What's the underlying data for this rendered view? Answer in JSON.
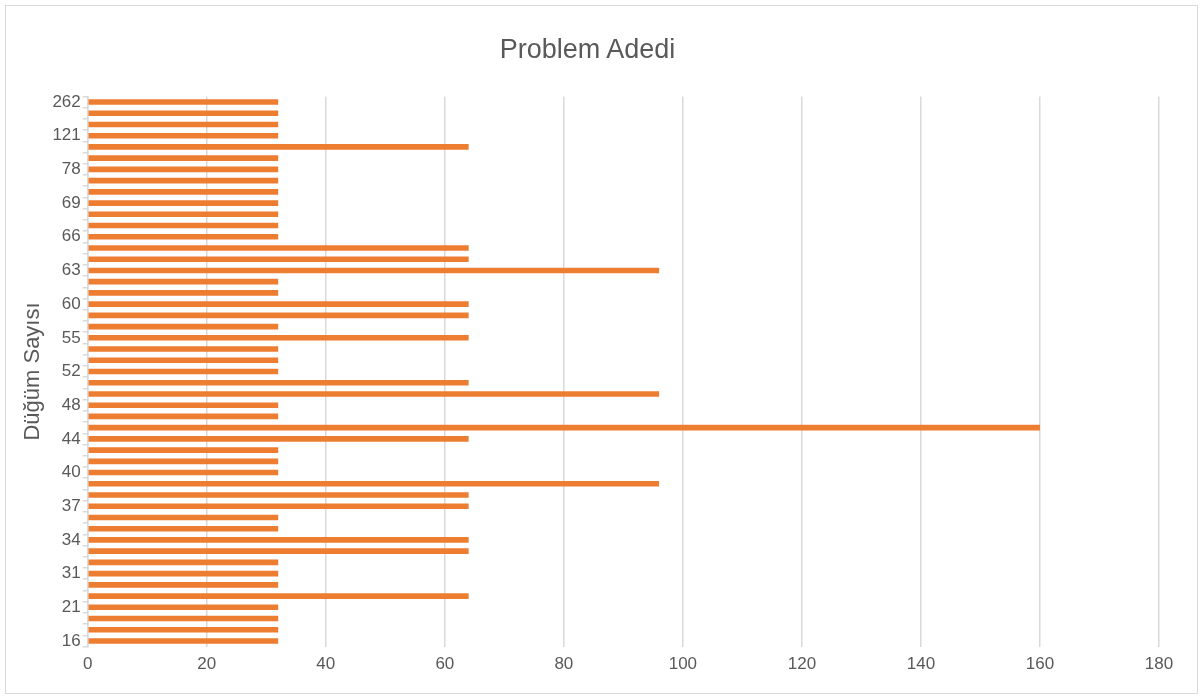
{
  "chart_data": {
    "type": "bar",
    "orientation": "horizontal",
    "title": "Problem Adedi",
    "ylabel": "Düğüm Sayısı",
    "categories": [
      "262",
      null,
      null,
      "121",
      null,
      null,
      "78",
      null,
      null,
      "69",
      null,
      null,
      "66",
      null,
      null,
      "63",
      null,
      null,
      "60",
      null,
      null,
      "55",
      null,
      null,
      "52",
      null,
      null,
      "48",
      null,
      null,
      "44",
      null,
      null,
      "40",
      null,
      null,
      "37",
      null,
      null,
      "34",
      null,
      null,
      "31",
      null,
      null,
      "21",
      null,
      null,
      "16"
    ],
    "values": [
      32,
      32,
      32,
      32,
      64,
      32,
      32,
      32,
      32,
      32,
      32,
      32,
      32,
      64,
      64,
      96,
      32,
      32,
      64,
      64,
      32,
      64,
      32,
      32,
      32,
      64,
      96,
      32,
      32,
      160,
      64,
      32,
      32,
      32,
      96,
      64,
      64,
      32,
      32,
      64,
      64,
      32,
      32,
      32,
      64,
      32,
      32,
      32,
      32
    ],
    "color": "#ed7d31",
    "xlim": [
      0,
      180
    ],
    "xticks": [
      0,
      20,
      40,
      60,
      80,
      100,
      120,
      140,
      160,
      180
    ],
    "grid": "x",
    "legend": false
  }
}
